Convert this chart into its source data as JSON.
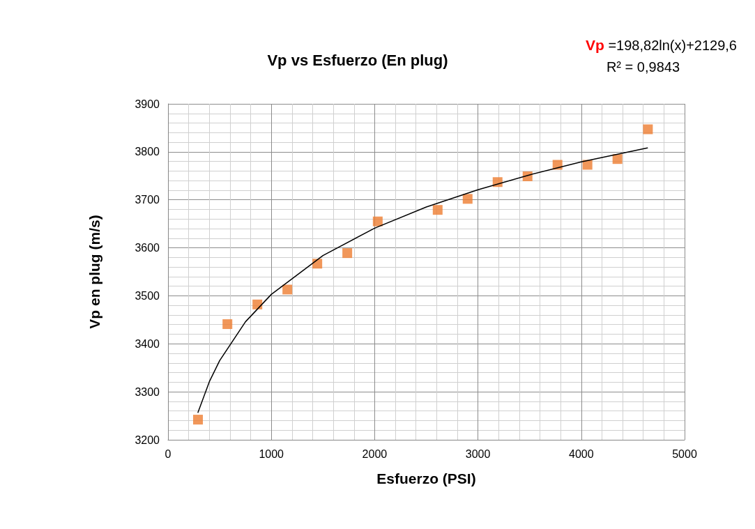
{
  "chart_data": {
    "type": "scatter",
    "title": "Vp vs Esfuerzo (En plug)",
    "xlabel": "Esfuerzo (PSI)",
    "ylabel": "Vp en plug (m/s)",
    "annotations": [
      "Vp =198,82ln(x)+2129,6",
      "R² = 0,9843"
    ],
    "xlim": [
      0,
      5000
    ],
    "xticks": [
      0,
      1000,
      2000,
      3000,
      4000,
      5000
    ],
    "ylim": [
      3200,
      3900
    ],
    "yticks": [
      3200,
      3300,
      3400,
      3500,
      3600,
      3700,
      3800,
      3900
    ],
    "grid": true,
    "marker": "square",
    "series": [
      {
        "color": "#ed7d31",
        "x": [
          290,
          575,
          865,
          1155,
          1445,
          1735,
          2030,
          2610,
          2900,
          3190,
          3480,
          3770,
          4060,
          4350,
          4645
        ],
        "values": [
          3242,
          3441,
          3482,
          3513,
          3567,
          3589,
          3655,
          3679,
          3702,
          3737,
          3749,
          3773,
          3773,
          3785,
          3847
        ]
      },
      {
        "type": "line",
        "color": "#000000",
        "line_style": "solid",
        "marker": "none",
        "x": [
          290,
          400,
          500,
          750,
          1000,
          1500,
          2000,
          2500,
          3000,
          3500,
          4000,
          4640
        ],
        "values": [
          3257,
          3321,
          3365,
          3446,
          3503,
          3584,
          3641,
          3685,
          3721,
          3752,
          3779,
          3808
        ]
      }
    ]
  }
}
